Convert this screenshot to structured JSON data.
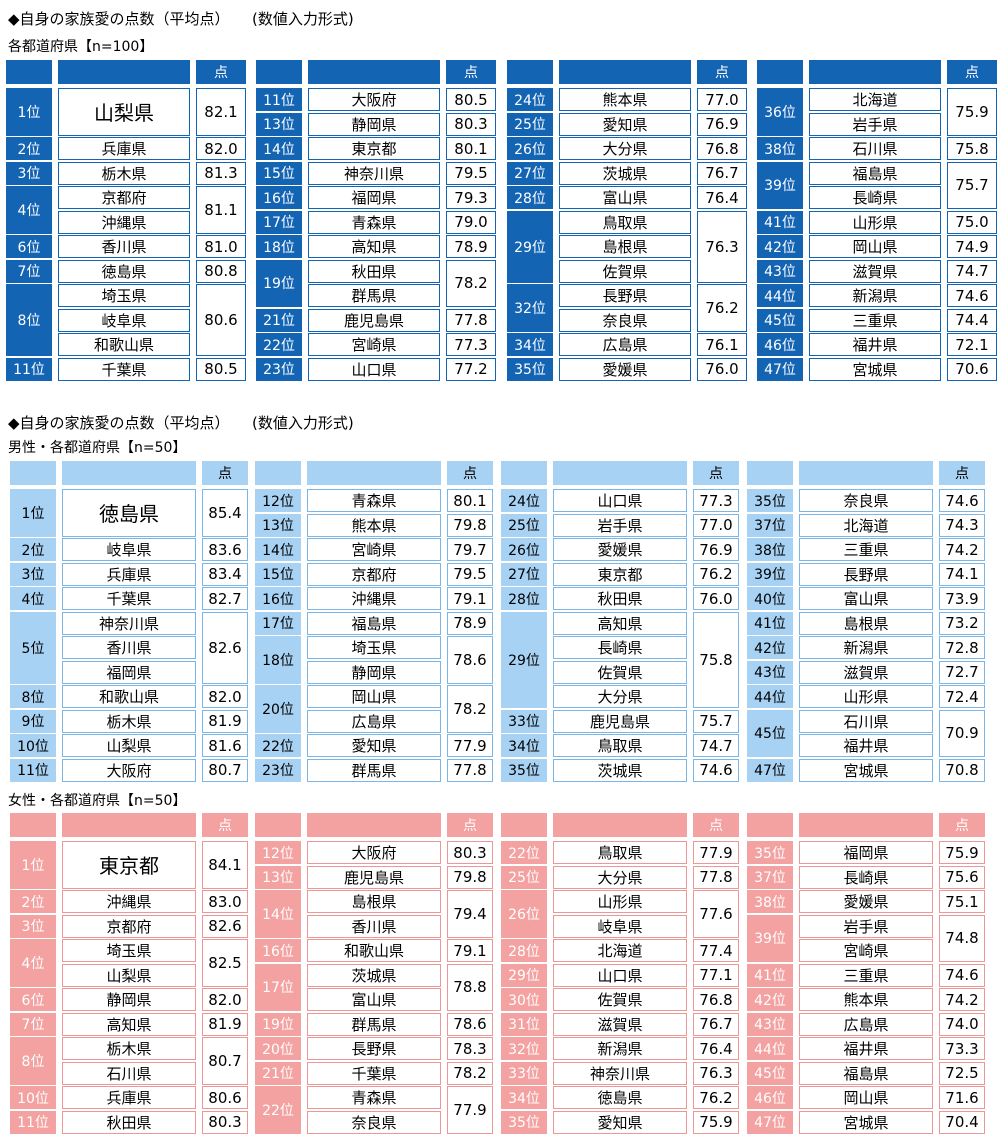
{
  "heading1": "◆自身の家族愛の点数（平均点）　　(数値入力形式)",
  "heading2": "◆自身の家族愛の点数（平均点）　　(数値入力形式)",
  "sections": [
    {
      "label": "各都道府県【n=100】",
      "score_header": "点",
      "columns": [
        [
          {
            "rank": "1位",
            "prefs": [
              "山梨県"
            ],
            "score": "82.1",
            "big": true
          },
          {
            "rank": "2位",
            "prefs": [
              "兵庫県"
            ],
            "score": "82.0"
          },
          {
            "rank": "3位",
            "prefs": [
              "栃木県"
            ],
            "score": "81.3"
          },
          {
            "rank": "4位",
            "prefs": [
              "京都府",
              "沖縄県"
            ],
            "score": "81.1"
          },
          {
            "rank": "6位",
            "prefs": [
              "香川県"
            ],
            "score": "81.0"
          },
          {
            "rank": "7位",
            "prefs": [
              "徳島県"
            ],
            "score": "80.8"
          },
          {
            "rank": "8位",
            "prefs": [
              "埼玉県",
              "岐阜県",
              "和歌山県"
            ],
            "score": "80.6"
          },
          {
            "rank": "11位",
            "prefs": [
              "千葉県"
            ],
            "score": "80.5"
          }
        ],
        [
          {
            "rank": "11位",
            "prefs": [
              "大阪府"
            ],
            "score": "80.5"
          },
          {
            "rank": "13位",
            "prefs": [
              "静岡県"
            ],
            "score": "80.3"
          },
          {
            "rank": "14位",
            "prefs": [
              "東京都"
            ],
            "score": "80.1"
          },
          {
            "rank": "15位",
            "prefs": [
              "神奈川県"
            ],
            "score": "79.5"
          },
          {
            "rank": "16位",
            "prefs": [
              "福岡県"
            ],
            "score": "79.3"
          },
          {
            "rank": "17位",
            "prefs": [
              "青森県"
            ],
            "score": "79.0"
          },
          {
            "rank": "18位",
            "prefs": [
              "高知県"
            ],
            "score": "78.9"
          },
          {
            "rank": "19位",
            "prefs": [
              "秋田県",
              "群馬県"
            ],
            "score": "78.2"
          },
          {
            "rank": "21位",
            "prefs": [
              "鹿児島県"
            ],
            "score": "77.8"
          },
          {
            "rank": "22位",
            "prefs": [
              "宮崎県"
            ],
            "score": "77.3"
          },
          {
            "rank": "23位",
            "prefs": [
              "山口県"
            ],
            "score": "77.2"
          }
        ],
        [
          {
            "rank": "24位",
            "prefs": [
              "熊本県"
            ],
            "score": "77.0"
          },
          {
            "rank": "25位",
            "prefs": [
              "愛知県"
            ],
            "score": "76.9"
          },
          {
            "rank": "26位",
            "prefs": [
              "大分県"
            ],
            "score": "76.8"
          },
          {
            "rank": "27位",
            "prefs": [
              "茨城県"
            ],
            "score": "76.7"
          },
          {
            "rank": "28位",
            "prefs": [
              "富山県"
            ],
            "score": "76.4"
          },
          {
            "rank": "29位",
            "prefs": [
              "鳥取県",
              "島根県",
              "佐賀県"
            ],
            "score": "76.3"
          },
          {
            "rank": "32位",
            "prefs": [
              "長野県",
              "奈良県"
            ],
            "score": "76.2"
          },
          {
            "rank": "34位",
            "prefs": [
              "広島県"
            ],
            "score": "76.1"
          },
          {
            "rank": "35位",
            "prefs": [
              "愛媛県"
            ],
            "score": "76.0"
          }
        ],
        [
          {
            "rank": "36位",
            "prefs": [
              "北海道",
              "岩手県"
            ],
            "score": "75.9"
          },
          {
            "rank": "38位",
            "prefs": [
              "石川県"
            ],
            "score": "75.8"
          },
          {
            "rank": "39位",
            "prefs": [
              "福島県",
              "長崎県"
            ],
            "score": "75.7"
          },
          {
            "rank": "41位",
            "prefs": [
              "山形県"
            ],
            "score": "75.0"
          },
          {
            "rank": "42位",
            "prefs": [
              "岡山県"
            ],
            "score": "74.9"
          },
          {
            "rank": "43位",
            "prefs": [
              "滋賀県"
            ],
            "score": "74.7"
          },
          {
            "rank": "44位",
            "prefs": [
              "新潟県"
            ],
            "score": "74.6"
          },
          {
            "rank": "45位",
            "prefs": [
              "三重県"
            ],
            "score": "74.4"
          },
          {
            "rank": "46位",
            "prefs": [
              "福井県"
            ],
            "score": "72.1"
          },
          {
            "rank": "47位",
            "prefs": [
              "宮城県"
            ],
            "score": "70.6"
          }
        ]
      ]
    },
    {
      "label": "男性・各都道府県【n=50】",
      "score_header": "点",
      "columns": [
        [
          {
            "rank": "1位",
            "prefs": [
              "徳島県"
            ],
            "score": "85.4",
            "big": true
          },
          {
            "rank": "2位",
            "prefs": [
              "岐阜県"
            ],
            "score": "83.6"
          },
          {
            "rank": "3位",
            "prefs": [
              "兵庫県"
            ],
            "score": "83.4"
          },
          {
            "rank": "4位",
            "prefs": [
              "千葉県"
            ],
            "score": "82.7"
          },
          {
            "rank": "5位",
            "prefs": [
              "神奈川県",
              "香川県",
              "福岡県"
            ],
            "score": "82.6"
          },
          {
            "rank": "8位",
            "prefs": [
              "和歌山県"
            ],
            "score": "82.0"
          },
          {
            "rank": "9位",
            "prefs": [
              "栃木県"
            ],
            "score": "81.9"
          },
          {
            "rank": "10位",
            "prefs": [
              "山梨県"
            ],
            "score": "81.6"
          },
          {
            "rank": "11位",
            "prefs": [
              "大阪府"
            ],
            "score": "80.7"
          }
        ],
        [
          {
            "rank": "12位",
            "prefs": [
              "青森県"
            ],
            "score": "80.1"
          },
          {
            "rank": "13位",
            "prefs": [
              "熊本県"
            ],
            "score": "79.8"
          },
          {
            "rank": "14位",
            "prefs": [
              "宮崎県"
            ],
            "score": "79.7"
          },
          {
            "rank": "15位",
            "prefs": [
              "京都府"
            ],
            "score": "79.5"
          },
          {
            "rank": "16位",
            "prefs": [
              "沖縄県"
            ],
            "score": "79.1"
          },
          {
            "rank": "17位",
            "prefs": [
              "福島県"
            ],
            "score": "78.9"
          },
          {
            "rank": "18位",
            "prefs": [
              "埼玉県",
              "静岡県"
            ],
            "score": "78.6"
          },
          {
            "rank": "20位",
            "prefs": [
              "岡山県",
              "広島県"
            ],
            "score": "78.2"
          },
          {
            "rank": "22位",
            "prefs": [
              "愛知県"
            ],
            "score": "77.9"
          },
          {
            "rank": "23位",
            "prefs": [
              "群馬県"
            ],
            "score": "77.8"
          }
        ],
        [
          {
            "rank": "24位",
            "prefs": [
              "山口県"
            ],
            "score": "77.3"
          },
          {
            "rank": "25位",
            "prefs": [
              "岩手県"
            ],
            "score": "77.0"
          },
          {
            "rank": "26位",
            "prefs": [
              "愛媛県"
            ],
            "score": "76.9"
          },
          {
            "rank": "27位",
            "prefs": [
              "東京都"
            ],
            "score": "76.2"
          },
          {
            "rank": "28位",
            "prefs": [
              "秋田県"
            ],
            "score": "76.0"
          },
          {
            "rank": "29位",
            "prefs": [
              "高知県",
              "長崎県",
              "佐賀県",
              "大分県"
            ],
            "score": "75.8"
          },
          {
            "rank": "33位",
            "prefs": [
              "鹿児島県"
            ],
            "score": "75.7"
          },
          {
            "rank": "34位",
            "prefs": [
              "鳥取県"
            ],
            "score": "74.7"
          },
          {
            "rank": "35位",
            "prefs": [
              "茨城県"
            ],
            "score": "74.6"
          }
        ],
        [
          {
            "rank": "35位",
            "prefs": [
              "奈良県"
            ],
            "score": "74.6"
          },
          {
            "rank": "37位",
            "prefs": [
              "北海道"
            ],
            "score": "74.3"
          },
          {
            "rank": "38位",
            "prefs": [
              "三重県"
            ],
            "score": "74.2"
          },
          {
            "rank": "39位",
            "prefs": [
              "長野県"
            ],
            "score": "74.1"
          },
          {
            "rank": "40位",
            "prefs": [
              "富山県"
            ],
            "score": "73.9"
          },
          {
            "rank": "41位",
            "prefs": [
              "島根県"
            ],
            "score": "73.2"
          },
          {
            "rank": "42位",
            "prefs": [
              "新潟県"
            ],
            "score": "72.8"
          },
          {
            "rank": "43位",
            "prefs": [
              "滋賀県"
            ],
            "score": "72.7"
          },
          {
            "rank": "44位",
            "prefs": [
              "山形県"
            ],
            "score": "72.4"
          },
          {
            "rank": "45位",
            "prefs": [
              "石川県",
              "福井県"
            ],
            "score": "70.9"
          },
          {
            "rank": "47位",
            "prefs": [
              "宮城県"
            ],
            "score": "70.8"
          }
        ]
      ]
    },
    {
      "label": "女性・各都道府県【n=50】",
      "score_header": "点",
      "columns": [
        [
          {
            "rank": "1位",
            "prefs": [
              "東京都"
            ],
            "score": "84.1",
            "big": true
          },
          {
            "rank": "2位",
            "prefs": [
              "沖縄県"
            ],
            "score": "83.0"
          },
          {
            "rank": "3位",
            "prefs": [
              "京都府"
            ],
            "score": "82.6"
          },
          {
            "rank": "4位",
            "prefs": [
              "埼玉県",
              "山梨県"
            ],
            "score": "82.5"
          },
          {
            "rank": "6位",
            "prefs": [
              "静岡県"
            ],
            "score": "82.0"
          },
          {
            "rank": "7位",
            "prefs": [
              "高知県"
            ],
            "score": "81.9"
          },
          {
            "rank": "8位",
            "prefs": [
              "栃木県",
              "石川県"
            ],
            "score": "80.7"
          },
          {
            "rank": "10位",
            "prefs": [
              "兵庫県"
            ],
            "score": "80.6"
          },
          {
            "rank": "11位",
            "prefs": [
              "秋田県"
            ],
            "score": "80.3"
          }
        ],
        [
          {
            "rank": "12位",
            "prefs": [
              "大阪府"
            ],
            "score": "80.3"
          },
          {
            "rank": "13位",
            "prefs": [
              "鹿児島県"
            ],
            "score": "79.8"
          },
          {
            "rank": "14位",
            "prefs": [
              "島根県",
              "香川県"
            ],
            "score": "79.4"
          },
          {
            "rank": "16位",
            "prefs": [
              "和歌山県"
            ],
            "score": "79.1"
          },
          {
            "rank": "17位",
            "prefs": [
              "茨城県",
              "富山県"
            ],
            "score": "78.8"
          },
          {
            "rank": "19位",
            "prefs": [
              "群馬県"
            ],
            "score": "78.6"
          },
          {
            "rank": "20位",
            "prefs": [
              "長野県"
            ],
            "score": "78.3"
          },
          {
            "rank": "21位",
            "prefs": [
              "千葉県"
            ],
            "score": "78.2"
          },
          {
            "rank": "22位",
            "prefs": [
              "青森県",
              "奈良県"
            ],
            "score": "77.9"
          }
        ],
        [
          {
            "rank": "22位",
            "prefs": [
              "鳥取県"
            ],
            "score": "77.9"
          },
          {
            "rank": "25位",
            "prefs": [
              "大分県"
            ],
            "score": "77.8"
          },
          {
            "rank": "26位",
            "prefs": [
              "山形県",
              "岐阜県"
            ],
            "score": "77.6"
          },
          {
            "rank": "28位",
            "prefs": [
              "北海道"
            ],
            "score": "77.4"
          },
          {
            "rank": "29位",
            "prefs": [
              "山口県"
            ],
            "score": "77.1"
          },
          {
            "rank": "30位",
            "prefs": [
              "佐賀県"
            ],
            "score": "76.8"
          },
          {
            "rank": "31位",
            "prefs": [
              "滋賀県"
            ],
            "score": "76.7"
          },
          {
            "rank": "32位",
            "prefs": [
              "新潟県"
            ],
            "score": "76.4"
          },
          {
            "rank": "33位",
            "prefs": [
              "神奈川県"
            ],
            "score": "76.3"
          },
          {
            "rank": "34位",
            "prefs": [
              "徳島県"
            ],
            "score": "76.2"
          },
          {
            "rank": "35位",
            "prefs": [
              "愛知県"
            ],
            "score": "75.9"
          }
        ],
        [
          {
            "rank": "35位",
            "prefs": [
              "福岡県"
            ],
            "score": "75.9"
          },
          {
            "rank": "37位",
            "prefs": [
              "長崎県"
            ],
            "score": "75.6"
          },
          {
            "rank": "38位",
            "prefs": [
              "愛媛県"
            ],
            "score": "75.1"
          },
          {
            "rank": "39位",
            "prefs": [
              "岩手県",
              "宮崎県"
            ],
            "score": "74.8"
          },
          {
            "rank": "41位",
            "prefs": [
              "三重県"
            ],
            "score": "74.6"
          },
          {
            "rank": "42位",
            "prefs": [
              "熊本県"
            ],
            "score": "74.2"
          },
          {
            "rank": "43位",
            "prefs": [
              "広島県"
            ],
            "score": "74.0"
          },
          {
            "rank": "44位",
            "prefs": [
              "福井県"
            ],
            "score": "73.3"
          },
          {
            "rank": "45位",
            "prefs": [
              "福島県"
            ],
            "score": "72.5"
          },
          {
            "rank": "46位",
            "prefs": [
              "岡山県"
            ],
            "score": "71.6"
          },
          {
            "rank": "47位",
            "prefs": [
              "宮城県"
            ],
            "score": "70.4"
          }
        ]
      ]
    }
  ]
}
